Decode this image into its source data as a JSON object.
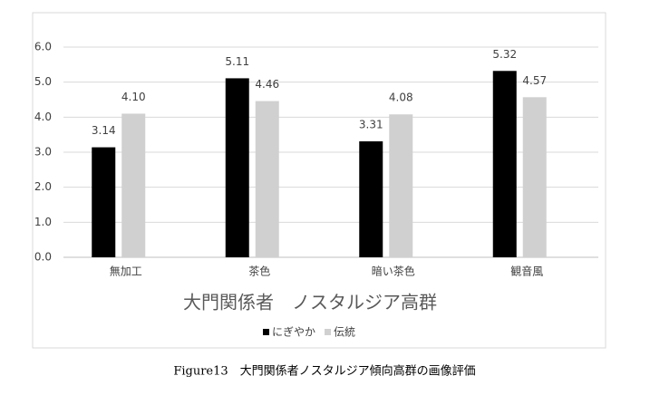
{
  "chart_data": {
    "type": "bar",
    "title": "大門関係者　ノスタルジア高群",
    "caption": "Figure13　大門関係者ノスタルジア傾向高群の画像評価",
    "categories": [
      "無加工",
      "茶色",
      "暗い茶色",
      "観音風"
    ],
    "series": [
      {
        "name": "にぎやか",
        "color": "#000000",
        "values": [
          3.14,
          5.11,
          3.31,
          5.32
        ]
      },
      {
        "name": "伝統",
        "color": "#d0d0d0",
        "values": [
          4.1,
          4.46,
          4.08,
          4.57
        ],
        "value_labels": [
          "4.10",
          "4.46",
          "4.08",
          "4.57"
        ]
      }
    ],
    "ylim": [
      0,
      6
    ],
    "yticks": [
      {
        "value": 0,
        "label": "0.0"
      },
      {
        "value": 1,
        "label": "1.0"
      },
      {
        "value": 2,
        "label": "2.0"
      },
      {
        "value": 3,
        "label": "3.0"
      },
      {
        "value": 4,
        "label": "4.0"
      },
      {
        "value": 5,
        "label": "5.0"
      },
      {
        "value": 6,
        "label": "6.0"
      }
    ],
    "grid": true,
    "legend": "bottom"
  }
}
